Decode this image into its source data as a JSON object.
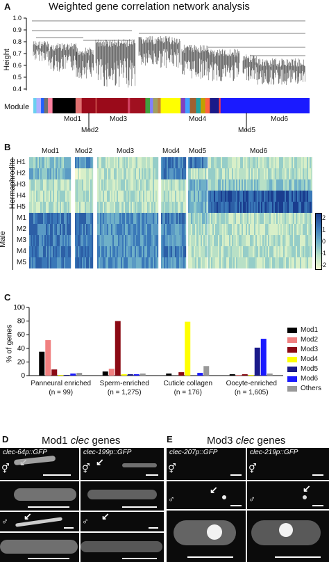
{
  "panelA": {
    "letter": "A",
    "title": "Weighted gene correlation network analysis",
    "ylabel": "Height",
    "yticks": [
      "1.0",
      "0.9",
      "0.8",
      "0.7",
      "0.6",
      "0.5",
      "0.4"
    ],
    "module_label": "Module",
    "mod_labels": [
      "Mod1",
      "Mod2",
      "Mod3",
      "Mod4",
      "Mod5",
      "Mod6"
    ]
  },
  "panelB": {
    "letter": "B",
    "col_headers": [
      "Mod1",
      "Mod2",
      "Mod3",
      "Mod4",
      "Mod5",
      "Mod6"
    ],
    "rows": [
      "H1",
      "H2",
      "H3",
      "H4",
      "H5",
      "M1",
      "M2",
      "M3",
      "M4",
      "M5"
    ],
    "group_herm": "Hermaphrodite",
    "group_male": "Male",
    "colorbar_ticks": [
      "2",
      "1",
      "0",
      "-1",
      "-2"
    ]
  },
  "panelC": {
    "letter": "C"
  },
  "chart_data": {
    "type": "bar",
    "ylabel": "% of genes",
    "ylim": [
      0,
      100
    ],
    "yticks": [
      "0",
      "20",
      "40",
      "60",
      "80",
      "100"
    ],
    "categories": [
      "Panneural enriched",
      "Sperm-enriched",
      "Cuticle collagen",
      "Oocyte-enriched"
    ],
    "category_counts": [
      "(n = 99)",
      "(n = 1,275)",
      "(n = 176)",
      "(n = 1,605)"
    ],
    "legend_position": "right",
    "series": [
      {
        "name": "Mod1",
        "color": "#000000",
        "values": [
          35,
          6,
          3,
          2
        ]
      },
      {
        "name": "Mod2",
        "color": "#f08080",
        "values": [
          52,
          10,
          0,
          1
        ]
      },
      {
        "name": "Mod3",
        "color": "#8b0a14",
        "values": [
          9,
          80,
          5,
          2
        ]
      },
      {
        "name": "Mod4",
        "color": "#ffff00",
        "values": [
          1,
          2,
          79,
          1
        ]
      },
      {
        "name": "Mod5",
        "color": "#1a1a8a",
        "values": [
          1,
          2,
          0,
          41
        ]
      },
      {
        "name": "Mod6",
        "color": "#1a1aff",
        "values": [
          3,
          2,
          4,
          54
        ]
      },
      {
        "name": "Others",
        "color": "#999999",
        "values": [
          4,
          3,
          14,
          3
        ]
      }
    ]
  },
  "panelD": {
    "letter": "D",
    "title_plain": "Mod1 ",
    "title_italic": "clec",
    "title_end": " genes",
    "reporters": [
      "clec-64p::GFP",
      "clec-199p::GFP"
    ],
    "herm_symbol": "⚥",
    "male_symbol": "♂"
  },
  "panelE": {
    "letter": "E",
    "title_plain": "Mod3 ",
    "title_italic": "clec",
    "title_end": " genes",
    "reporters": [
      "clec-207p::GFP",
      "clec-219p::GFP"
    ],
    "herm_symbol": "⚥",
    "male_symbol": "♂"
  }
}
